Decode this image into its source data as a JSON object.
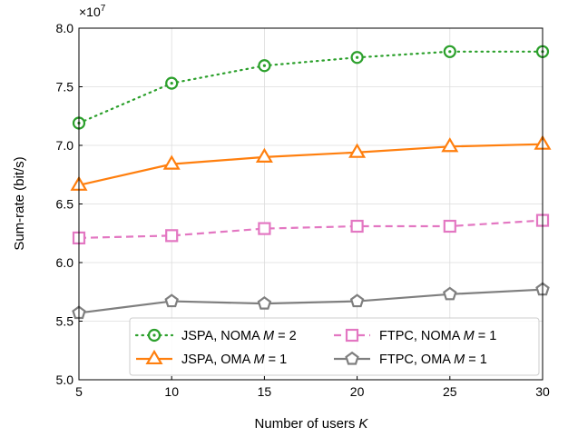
{
  "chart_data": {
    "type": "line",
    "title": "",
    "xlabel": "Number of users",
    "xlabel_var": "K",
    "ylabel": "Sum-rate (bit/s)",
    "y_multiplier_base": "×10",
    "y_multiplier_exp": "7",
    "xlim": [
      5,
      30
    ],
    "ylim": [
      5.0,
      8.0
    ],
    "xticks": [
      5,
      10,
      15,
      20,
      25,
      30
    ],
    "yticks": [
      5.0,
      5.5,
      6.0,
      6.5,
      7.0,
      7.5,
      8.0
    ],
    "ytick_labels": [
      "5.0",
      "5.5",
      "6.0",
      "6.5",
      "7.0",
      "7.5",
      "8.0"
    ],
    "grid": true,
    "legend_placement": "lower-right",
    "x": [
      5,
      10,
      15,
      20,
      25,
      30
    ],
    "series": [
      {
        "name": "JSPA, NOMA",
        "name_var": "M",
        "name_suffix": " = 2",
        "values": [
          7.19,
          7.53,
          7.68,
          7.75,
          7.8,
          7.8
        ],
        "color": "#2ca02c",
        "line": "dotted",
        "marker": "circle-dot"
      },
      {
        "name": "JSPA, OMA",
        "name_var": "M",
        "name_suffix": " = 1",
        "values": [
          6.66,
          6.84,
          6.9,
          6.94,
          6.99,
          7.01
        ],
        "color": "#ff7f0e",
        "line": "solid",
        "marker": "triangle"
      },
      {
        "name": "FTPC, NOMA",
        "name_var": "M",
        "name_suffix": " = 1",
        "values": [
          6.21,
          6.23,
          6.29,
          6.31,
          6.31,
          6.36
        ],
        "color": "#e377c2",
        "line": "dashed",
        "marker": "square"
      },
      {
        "name": "FTPC, OMA",
        "name_var": "M",
        "name_suffix": " = 1",
        "values": [
          5.57,
          5.67,
          5.65,
          5.67,
          5.73,
          5.77
        ],
        "color": "#7f7f7f",
        "line": "solid",
        "marker": "pentagon"
      }
    ]
  }
}
